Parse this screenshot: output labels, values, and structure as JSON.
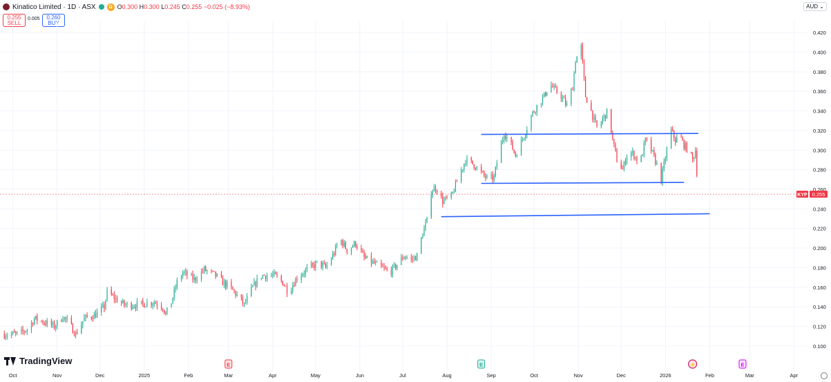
{
  "header": {
    "title": "Kinatico Limited · 1D · ASX",
    "open_label": "O",
    "open": "0.300",
    "high_label": "H",
    "high": "0.300",
    "low_label": "L",
    "low": "0.245",
    "close_label": "C",
    "close": "0.255",
    "change": "−0.025 (−8.93%)",
    "interval_badge": "D"
  },
  "trade": {
    "sell_price": "0.255",
    "sell_label": "SELL",
    "spread": "0.005",
    "buy_price": "0.260",
    "buy_label": "BUY"
  },
  "currency": "AUD ⌄",
  "brand": "TradingView",
  "last_price": {
    "symbol": "KYP",
    "value": "0.255"
  },
  "events": [
    {
      "label": "E",
      "kind": "earnings-red",
      "date": "2025-03-01"
    },
    {
      "label": "E",
      "kind": "earnings-green",
      "date": "2025-08-25"
    },
    {
      "label": "⚡",
      "kind": "split-future",
      "date": "2026-01-20"
    },
    {
      "label": "E",
      "kind": "earnings-future",
      "date": "2026-02-24"
    }
  ],
  "colors": {
    "up": "#22ab94",
    "down": "#f23645",
    "trendline": "#2962ff",
    "grid": "#f0f3fa"
  },
  "chart_data": {
    "type": "candlestick",
    "title": "Kinatico Limited · 1D · ASX",
    "xlabel": "",
    "ylabel": "",
    "ylim": [
      0.095,
      0.425
    ],
    "grid": true,
    "y_ticks": [
      "0.100",
      "0.120",
      "0.140",
      "0.160",
      "0.180",
      "0.200",
      "0.220",
      "0.240",
      "0.260",
      "0.280",
      "0.300",
      "0.320",
      "0.340",
      "0.360",
      "0.380",
      "0.400",
      "0.420"
    ],
    "x_ticks": [
      {
        "label": "Oct",
        "date": "2024-10-01"
      },
      {
        "label": "Nov",
        "date": "2024-11-01"
      },
      {
        "label": "Dec",
        "date": "2024-12-01"
      },
      {
        "label": "2025",
        "date": "2025-01-01"
      },
      {
        "label": "Feb",
        "date": "2025-02-01"
      },
      {
        "label": "Mar",
        "date": "2025-03-01"
      },
      {
        "label": "Apr",
        "date": "2025-04-01"
      },
      {
        "label": "May",
        "date": "2025-05-01"
      },
      {
        "label": "Jun",
        "date": "2025-06-01"
      },
      {
        "label": "Jul",
        "date": "2025-07-01"
      },
      {
        "label": "Aug",
        "date": "2025-08-01"
      },
      {
        "label": "Sep",
        "date": "2025-09-01"
      },
      {
        "label": "Oct",
        "date": "2025-10-01"
      },
      {
        "label": "Nov",
        "date": "2025-11-01"
      },
      {
        "label": "Dec",
        "date": "2025-12-01"
      },
      {
        "label": "2026",
        "date": "2026-01-01"
      },
      {
        "label": "Feb",
        "date": "2026-02-01"
      },
      {
        "label": "Mar",
        "date": "2026-03-01"
      },
      {
        "label": "Apr",
        "date": "2026-04-01"
      }
    ],
    "x_range": [
      "2024-09-22",
      "2026-04-10"
    ],
    "closes": [
      [
        "2024-09-25",
        0.112
      ],
      [
        "2024-10-05",
        0.112
      ],
      [
        "2024-10-12",
        0.118
      ],
      [
        "2024-10-16",
        0.128
      ],
      [
        "2024-10-22",
        0.125
      ],
      [
        "2024-10-30",
        0.12
      ],
      [
        "2024-11-05",
        0.13
      ],
      [
        "2024-11-10",
        0.122
      ],
      [
        "2024-11-14",
        0.112
      ],
      [
        "2024-11-20",
        0.128
      ],
      [
        "2024-11-28",
        0.132
      ],
      [
        "2024-12-04",
        0.14
      ],
      [
        "2024-12-06",
        0.155
      ],
      [
        "2024-12-12",
        0.148
      ],
      [
        "2024-12-18",
        0.142
      ],
      [
        "2024-12-28",
        0.142
      ],
      [
        "2025-01-08",
        0.145
      ],
      [
        "2025-01-14",
        0.14
      ],
      [
        "2025-01-16",
        0.132
      ],
      [
        "2025-01-20",
        0.145
      ],
      [
        "2025-01-24",
        0.165
      ],
      [
        "2025-01-28",
        0.175
      ],
      [
        "2025-02-05",
        0.168
      ],
      [
        "2025-02-12",
        0.178
      ],
      [
        "2025-02-20",
        0.172
      ],
      [
        "2025-02-25",
        0.165
      ],
      [
        "2025-03-02",
        0.16
      ],
      [
        "2025-03-08",
        0.15
      ],
      [
        "2025-03-12",
        0.142
      ],
      [
        "2025-03-18",
        0.16
      ],
      [
        "2025-03-24",
        0.172
      ],
      [
        "2025-04-02",
        0.172
      ],
      [
        "2025-04-08",
        0.165
      ],
      [
        "2025-04-12",
        0.155
      ],
      [
        "2025-04-18",
        0.17
      ],
      [
        "2025-04-25",
        0.178
      ],
      [
        "2025-05-03",
        0.185
      ],
      [
        "2025-05-08",
        0.18
      ],
      [
        "2025-05-14",
        0.195
      ],
      [
        "2025-05-18",
        0.21
      ],
      [
        "2025-05-23",
        0.198
      ],
      [
        "2025-05-29",
        0.205
      ],
      [
        "2025-06-04",
        0.19
      ],
      [
        "2025-06-10",
        0.185
      ],
      [
        "2025-06-16",
        0.18
      ],
      [
        "2025-06-22",
        0.175
      ],
      [
        "2025-06-28",
        0.185
      ],
      [
        "2025-07-02",
        0.192
      ],
      [
        "2025-07-07",
        0.188
      ],
      [
        "2025-07-11",
        0.192
      ],
      [
        "2025-07-15",
        0.215
      ],
      [
        "2025-07-18",
        0.228
      ],
      [
        "2025-07-21",
        0.258
      ],
      [
        "2025-07-24",
        0.262
      ],
      [
        "2025-07-29",
        0.248
      ],
      [
        "2025-08-04",
        0.252
      ],
      [
        "2025-08-09",
        0.272
      ],
      [
        "2025-08-14",
        0.29
      ],
      [
        "2025-08-20",
        0.285
      ],
      [
        "2025-08-26",
        0.275
      ],
      [
        "2025-08-30",
        0.27
      ],
      [
        "2025-09-03",
        0.272
      ],
      [
        "2025-09-06",
        0.295
      ],
      [
        "2025-09-10",
        0.318
      ],
      [
        "2025-09-14",
        0.308
      ],
      [
        "2025-09-18",
        0.295
      ],
      [
        "2025-09-24",
        0.315
      ],
      [
        "2025-09-29",
        0.335
      ],
      [
        "2025-10-03",
        0.345
      ],
      [
        "2025-10-08",
        0.355
      ],
      [
        "2025-10-12",
        0.368
      ],
      [
        "2025-10-15",
        0.362
      ],
      [
        "2025-10-20",
        0.355
      ],
      [
        "2025-10-24",
        0.345
      ],
      [
        "2025-10-28",
        0.365
      ],
      [
        "2025-10-30",
        0.392
      ],
      [
        "2025-11-03",
        0.405
      ],
      [
        "2025-11-06",
        0.355
      ],
      [
        "2025-11-09",
        0.345
      ],
      [
        "2025-11-12",
        0.33
      ],
      [
        "2025-11-15",
        0.32
      ],
      [
        "2025-11-18",
        0.332
      ],
      [
        "2025-11-22",
        0.34
      ],
      [
        "2025-11-25",
        0.31
      ],
      [
        "2025-11-28",
        0.29
      ],
      [
        "2025-12-02",
        0.28
      ],
      [
        "2025-12-06",
        0.3
      ],
      [
        "2025-12-10",
        0.295
      ],
      [
        "2025-12-14",
        0.285
      ],
      [
        "2025-12-18",
        0.31
      ],
      [
        "2025-12-22",
        0.3
      ],
      [
        "2025-12-26",
        0.285
      ],
      [
        "2025-12-29",
        0.27
      ],
      [
        "2026-01-02",
        0.3
      ],
      [
        "2026-01-05",
        0.32
      ],
      [
        "2026-01-08",
        0.31
      ],
      [
        "2026-01-11",
        0.315
      ],
      [
        "2026-01-14",
        0.305
      ],
      [
        "2026-01-17",
        0.3
      ],
      [
        "2026-01-20",
        0.29
      ],
      [
        "2026-01-22",
        0.3
      ],
      [
        "2026-01-24",
        0.255
      ]
    ],
    "trendlines": [
      {
        "from": [
          "2025-07-28",
          0.232
        ],
        "to": [
          "2026-02-01",
          0.235
        ]
      },
      {
        "from": [
          "2025-08-25",
          0.266
        ],
        "to": [
          "2026-01-14",
          0.267
        ]
      },
      {
        "from": [
          "2025-08-25",
          0.316
        ],
        "to": [
          "2026-01-24",
          0.317
        ]
      }
    ],
    "last_price_line": 0.255
  }
}
